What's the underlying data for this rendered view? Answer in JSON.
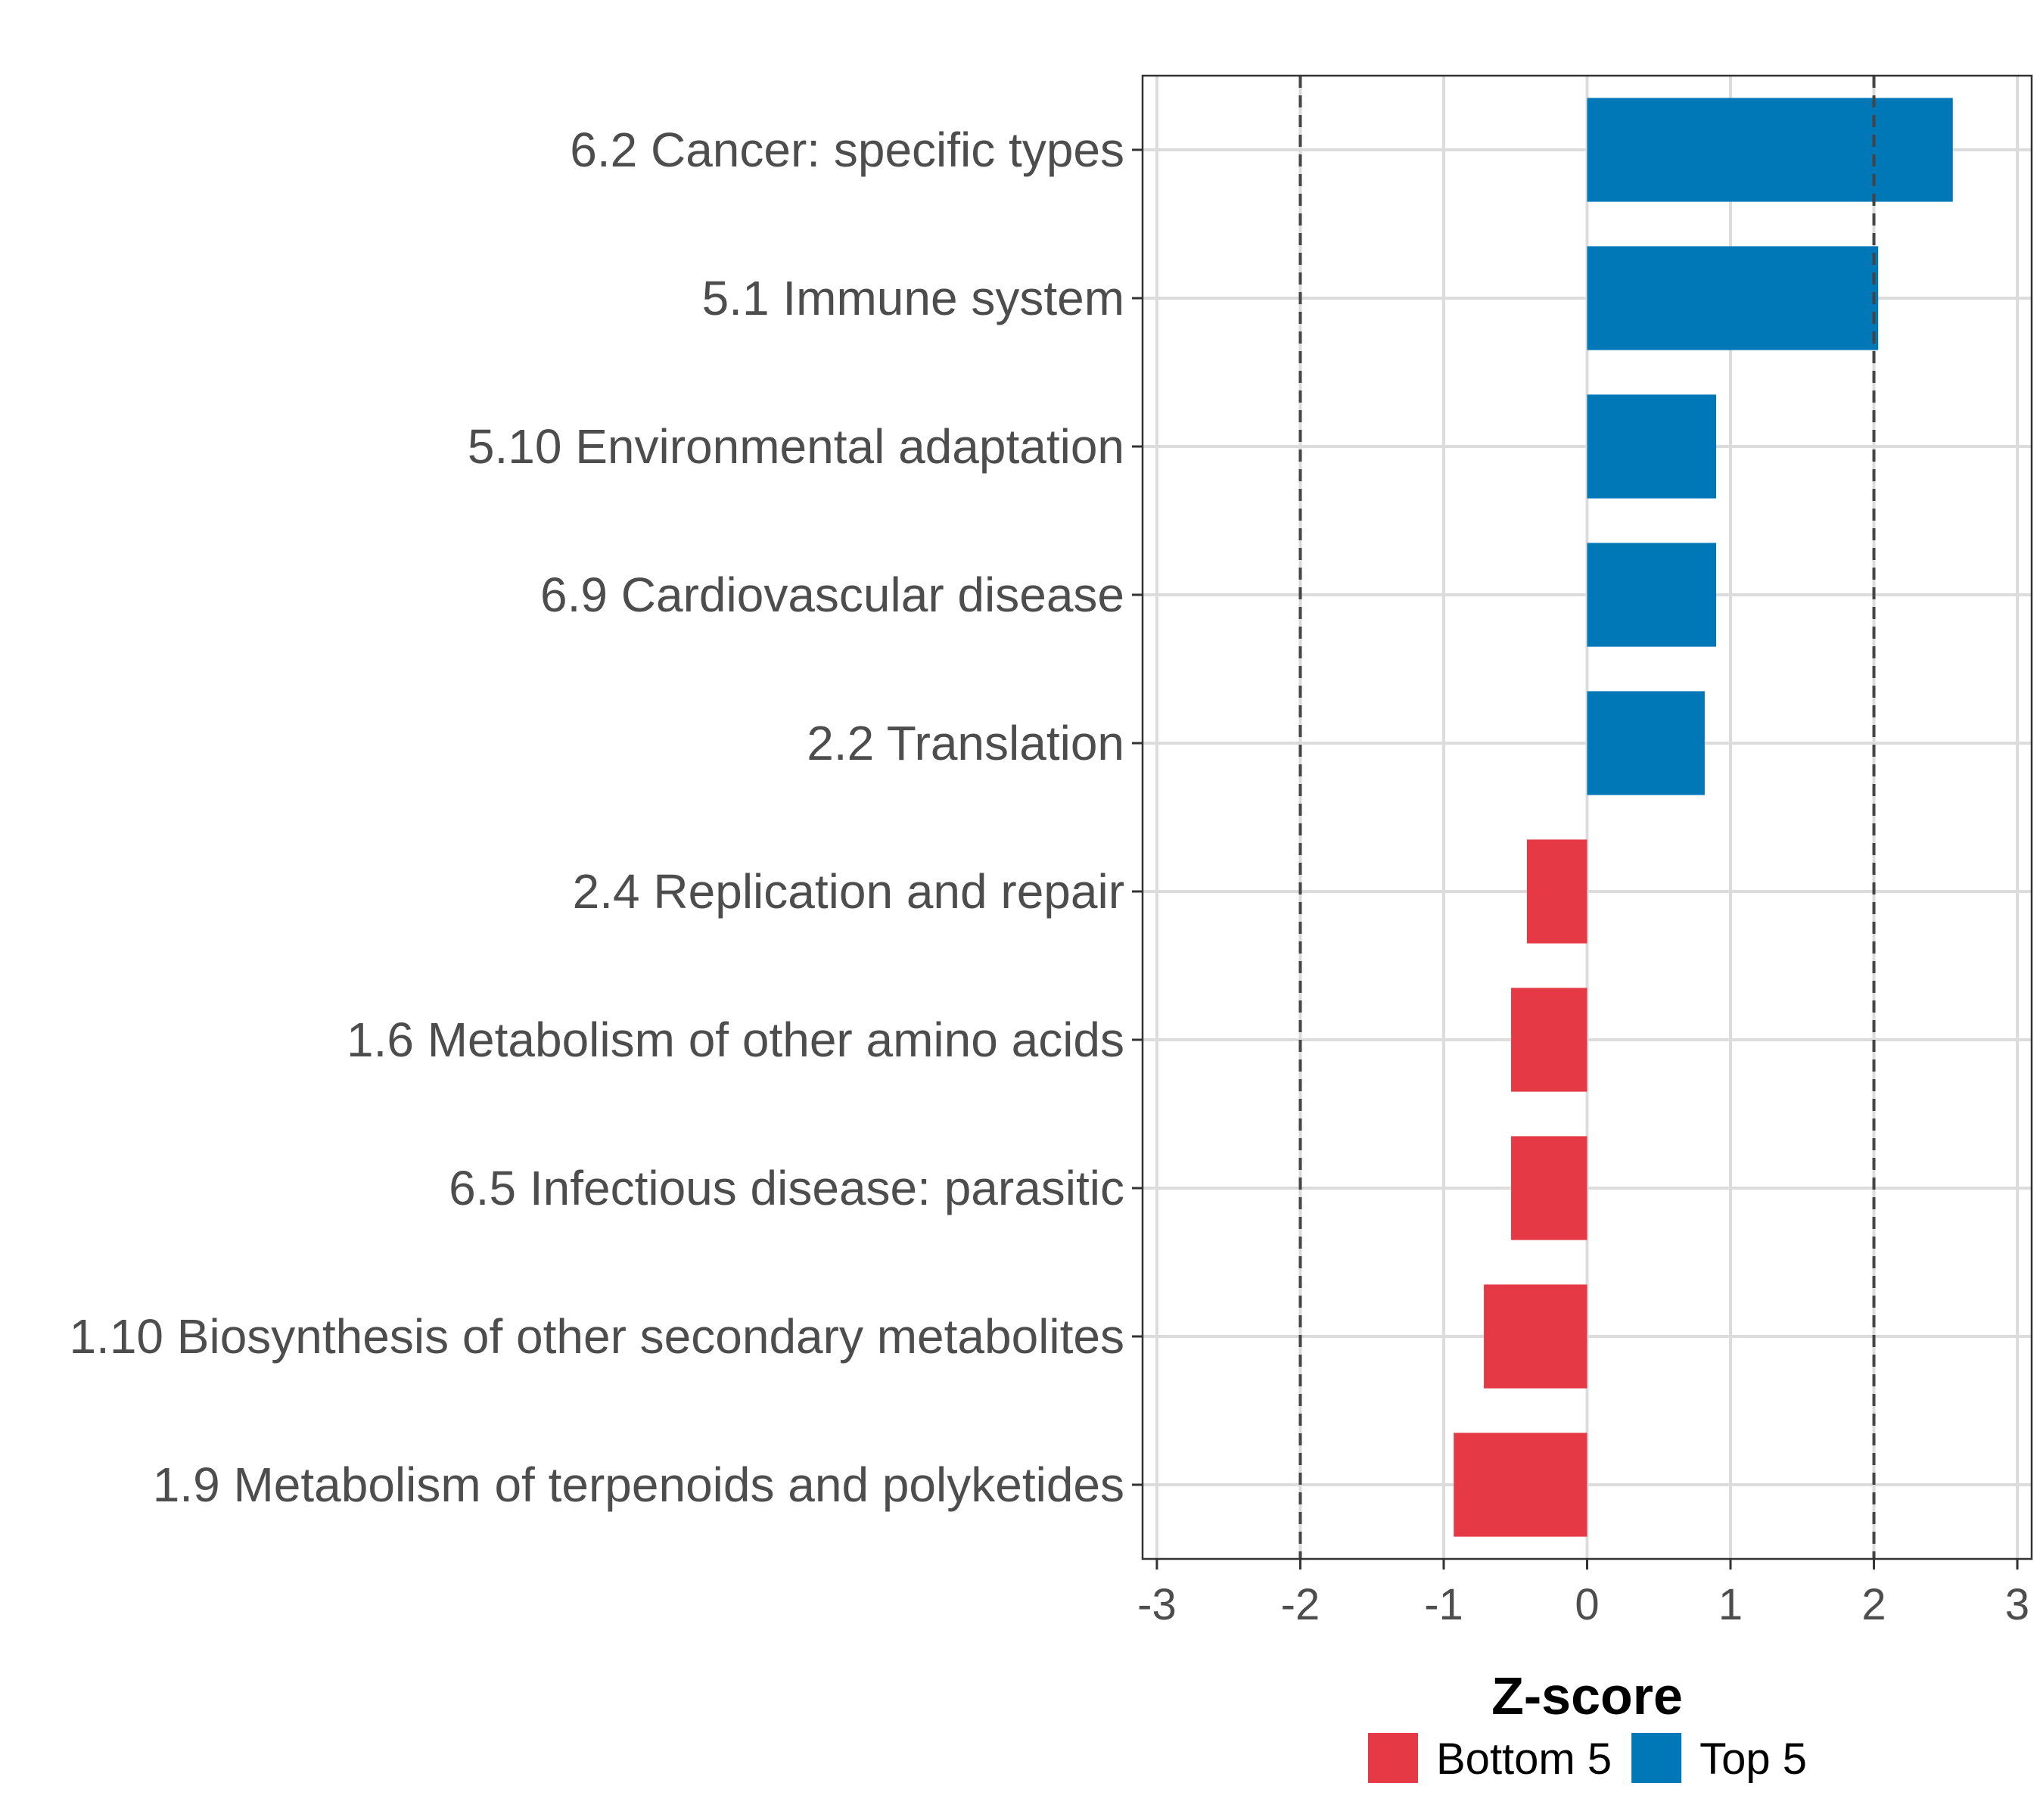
{
  "chart_data": {
    "type": "bar",
    "orientation": "horizontal",
    "title": "",
    "xlabel": "Z-score",
    "ylabel": "",
    "xlim": [
      -3.1,
      3.1
    ],
    "xticks": [
      -3,
      -2,
      -1,
      0,
      1,
      2,
      3
    ],
    "xtick_labels": [
      "-3",
      "-2",
      "-1",
      "0",
      "1",
      "2",
      "3"
    ],
    "grid": true,
    "reference_lines": [
      -2,
      2
    ],
    "categories": [
      "6.2 Cancer: specific types",
      "5.1 Immune system",
      "5.10 Environmental adaptation",
      "6.9 Cardiovascular disease",
      "2.2 Translation",
      "2.4 Replication and repair",
      "1.6 Metabolism of other amino acids",
      "6.5 Infectious disease: parasitic",
      "1.10 Biosynthesis of other secondary metabolites",
      "1.9 Metabolism of terpenoids and polyketides"
    ],
    "values": [
      2.55,
      2.03,
      0.9,
      0.9,
      0.82,
      -0.42,
      -0.53,
      -0.53,
      -0.72,
      -0.93
    ],
    "groups": [
      "Top 5",
      "Top 5",
      "Top 5",
      "Top 5",
      "Top 5",
      "Bottom 5",
      "Bottom 5",
      "Bottom 5",
      "Bottom 5",
      "Bottom 5"
    ],
    "legend": {
      "position": "bottom",
      "entries": [
        {
          "label": "Bottom 5",
          "color": "#e63946"
        },
        {
          "label": "Top 5",
          "color": "#0077b6"
        }
      ]
    }
  }
}
